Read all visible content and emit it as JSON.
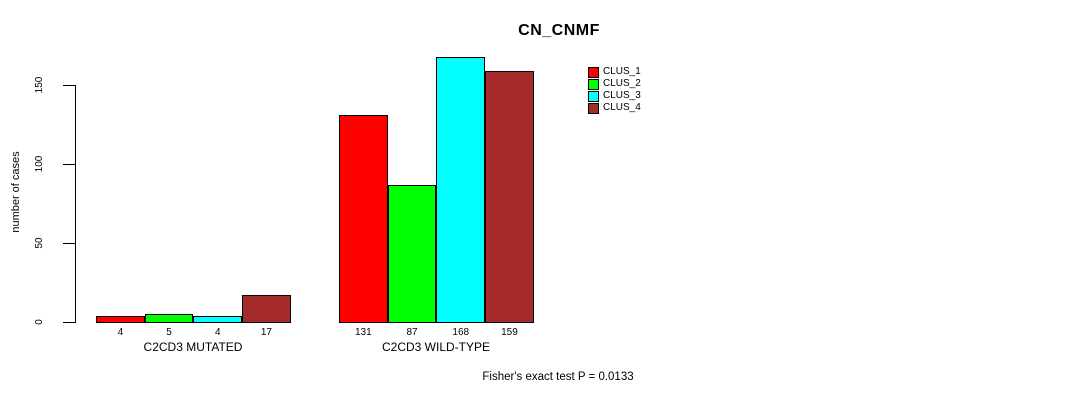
{
  "title": "CN_CNMF",
  "ylabel": "number of cases",
  "footer": "Fisher's exact test P = 0.0133",
  "chart_data": {
    "type": "bar",
    "categories": [
      "C2CD3 MUTATED",
      "C2CD3 WILD-TYPE"
    ],
    "series": [
      {
        "name": "CLUS_1",
        "color": "#FF0000",
        "values": [
          4,
          131
        ]
      },
      {
        "name": "CLUS_2",
        "color": "#00FF00",
        "values": [
          5,
          87
        ]
      },
      {
        "name": "CLUS_3",
        "color": "#00FFFF",
        "values": [
          4,
          168
        ]
      },
      {
        "name": "CLUS_4",
        "color": "#A52A2A",
        "values": [
          17,
          159
        ]
      }
    ],
    "value_labels": {
      "C2CD3 MUTATED": [
        4,
        5,
        4,
        17
      ],
      "C2CD3 WILD-TYPE": [
        131,
        87,
        168,
        159
      ]
    },
    "yticks": [
      0,
      50,
      100,
      150
    ],
    "ylim": [
      0,
      168
    ],
    "grid": false,
    "legend_position": "topright",
    "bar_border_color": "#000000",
    "background_color": "#FFFFFF"
  }
}
